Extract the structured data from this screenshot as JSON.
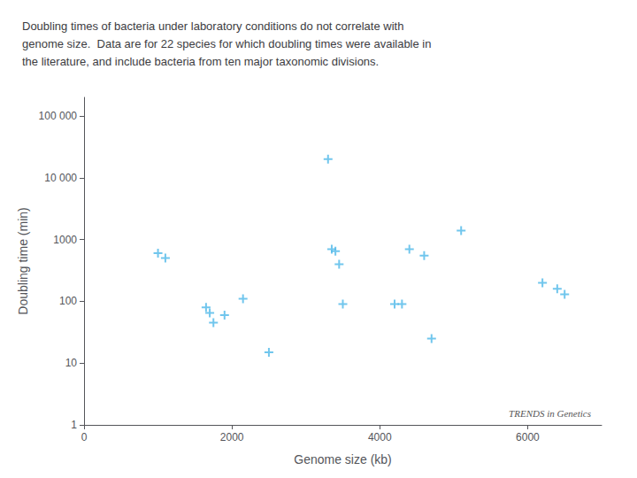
{
  "chart_data": {
    "type": "scatter",
    "title": "Doubling times of bacteria under laboratory conditions do not correlate with\ngenome size.  Data are for 22 species for which doubling times were available in\nthe literature, and include bacteria from ten major taxonomic divisions.",
    "xlabel": "Genome size (kb)",
    "ylabel": "Doubling time (min)",
    "annotations": [
      "TRENDS in Genetics"
    ],
    "x": [
      1000,
      1100,
      1650,
      1700,
      1750,
      1900,
      2150,
      2500,
      3300,
      3350,
      3400,
      3450,
      3500,
      4200,
      4300,
      4400,
      4600,
      4700,
      5100,
      6200,
      6400,
      6500
    ],
    "values": [
      600,
      500,
      80,
      65,
      45,
      60,
      110,
      15,
      20000,
      700,
      650,
      400,
      90,
      90,
      90,
      700,
      550,
      25,
      1400,
      200,
      160,
      130
    ],
    "color": "#4DB8E8",
    "marker": "plus",
    "log": "y",
    "xlim": [
      0,
      7000
    ],
    "xticks": [
      0,
      2000,
      4000,
      6000
    ],
    "ylim": [
      1,
      200000
    ],
    "yticks": [
      1,
      10,
      100,
      1000,
      {
        "value": 10000,
        "label": "10 000"
      },
      {
        "value": 100000,
        "label": "100 000"
      }
    ],
    "grid": false
  }
}
